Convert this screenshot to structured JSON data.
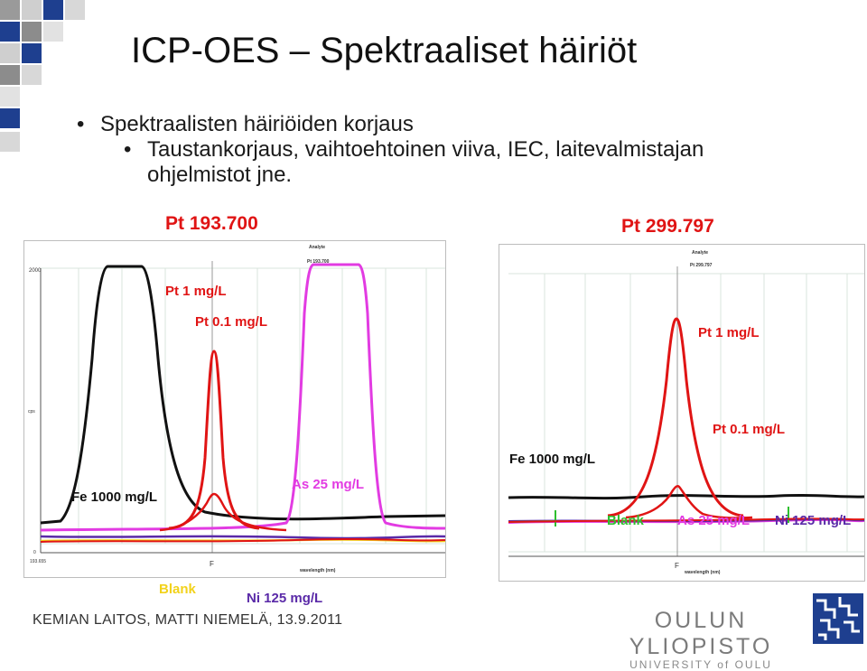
{
  "slide": {
    "title": "ICP-OES – Spektraaliset häiriöt",
    "bullets": {
      "b1": "Spektraalisten häiriöiden korjaus",
      "b2": "Taustankorjaus, vaihtoehtoinen viiva, IEC, laitevalmistajan ohjelmistot jne."
    },
    "footer": "KEMIAN LAITOS, MATTI NIEMELÄ, 13.9.2011",
    "logo": {
      "name": "OULUN YLIOPISTO",
      "name_en": "UNIVERSITY of OULU"
    }
  },
  "left_chart": {
    "heading": "Pt  193.700",
    "analyte_label": "Analyte",
    "analyte_value": "Pt 193.700",
    "ymax": "2000",
    "ylabel": "cps",
    "y0": "0",
    "x0": "193.655",
    "xlabel": "wavelength (nm)",
    "labels": {
      "pt1": "Pt  1 mg/L",
      "pt01": "Pt 0.1 mg/L",
      "fe": "Fe 1000 mg/L",
      "as": "As 25 mg/L",
      "blank": "Blank",
      "ni": "Ni 125 mg/L"
    }
  },
  "right_chart": {
    "heading": "Pt  299.797",
    "analyte_label": "Analyte",
    "analyte_value": "Pt 299.797",
    "xlabel": "wavelength (nm)",
    "labels": {
      "pt1": "Pt  1 mg/L",
      "pt01": "Pt 0.1 mg/L",
      "fe": "Fe 1000 mg/L",
      "blank": "Blank",
      "as": "As 25 mg/L",
      "ni": "Ni 125 mg/L"
    }
  },
  "colors": {
    "accent_blue": "#1e3f8f",
    "pt_red": "#e01414",
    "fe_black": "#111111",
    "as_magenta": "#e23be2",
    "blank_yellow": "#f2d21a",
    "ni_purple": "#5a2aa8",
    "blank_green": "#2fbf2f"
  }
}
